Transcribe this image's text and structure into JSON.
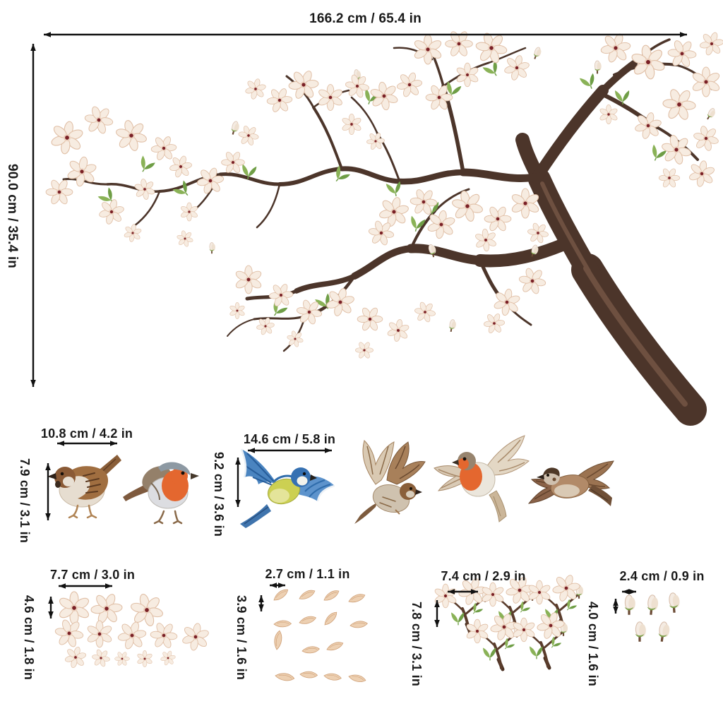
{
  "illustration": {
    "name": "magnolia-blossom-branch-with-birds",
    "background": "#ffffff"
  },
  "main_decal": {
    "width_label": "166.2 cm / 65.4 in",
    "height_label": "90.0 cm / 35.4 in"
  },
  "groups": {
    "standing_birds": {
      "width_label": "10.8 cm / 4.2 in",
      "height_label": "7.9 cm / 3.1 in",
      "items": [
        "sparrow-standing-icon",
        "robin-standing-icon"
      ]
    },
    "flying_birds": {
      "width_label": "14.6 cm / 5.8 in",
      "height_label": "9.2 cm / 3.6 in",
      "items": [
        "blue-tit-flying-icon",
        "sparrow-flying-wings-up-icon",
        "robin-flying-icon",
        "sparrow-flying-icon"
      ]
    },
    "single_flowers": {
      "width_label": "7.7 cm / 3.0 in",
      "height_label": "4.6 cm / 1.8 in",
      "item_count": 13
    },
    "petals": {
      "width_label": "2.7 cm / 1.1 in",
      "height_label": "3.9 cm / 1.6 in",
      "item_count": 15
    },
    "flower_clusters": {
      "width_label": "7.4 cm / 2.9 in",
      "height_label": "7.8 cm / 3.1 in",
      "item_count": 5
    },
    "flower_buds": {
      "width_label": "2.4 cm / 0.9 in",
      "height_label": "4.0 cm / 1.6 in",
      "item_count": 5
    }
  },
  "colors": {
    "dimension_line": "#111111",
    "label_text": "#1a1a1a",
    "branch": "#4c352a",
    "petal": "#f7ece1",
    "petal_edge": "#e0bfa6",
    "flower_center": "#7a2026",
    "leaf_green": "#8ab257",
    "robin_orange": "#e4672f",
    "blue_tit_blue": "#3f7fc0",
    "sparrow_brown": "#9b7351"
  }
}
